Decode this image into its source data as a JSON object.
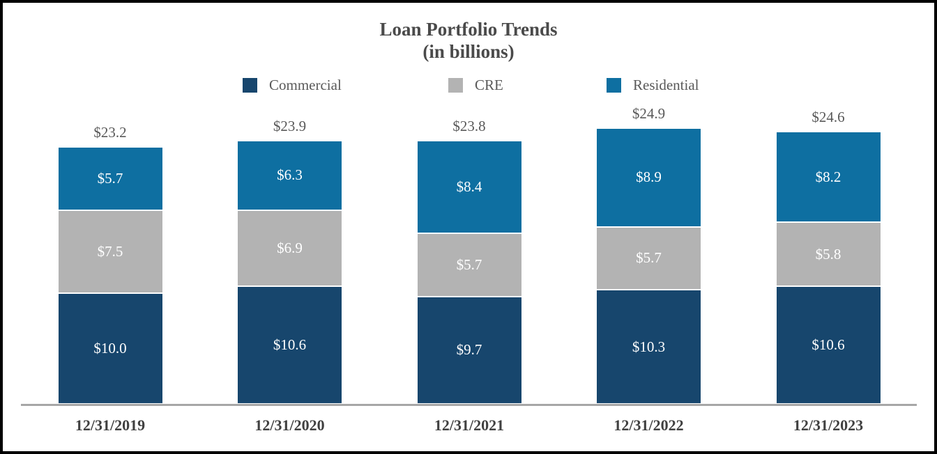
{
  "chart": {
    "title": "Loan Portfolio Trends",
    "subtitle": "(in billions)"
  },
  "chart_data": {
    "type": "bar",
    "stacked": true,
    "title": "Loan Portfolio Trends",
    "subtitle": "(in billions)",
    "categories": [
      "12/31/2019",
      "12/31/2020",
      "12/31/2021",
      "12/31/2022",
      "12/31/2023"
    ],
    "series": [
      {
        "name": "Commercial",
        "color": "#17466D",
        "values": [
          10.0,
          10.6,
          9.7,
          10.3,
          10.6
        ],
        "labels": [
          "$10.0",
          "$10.6",
          "$9.7",
          "$10.3",
          "$10.6"
        ]
      },
      {
        "name": "CRE",
        "color": "#B3B3B3",
        "values": [
          7.5,
          6.9,
          5.7,
          5.7,
          5.8
        ],
        "labels": [
          "$7.5",
          "$6.9",
          "$5.7",
          "$5.7",
          "$5.8"
        ]
      },
      {
        "name": "Residential",
        "color": "#0E6FA1",
        "values": [
          5.7,
          6.3,
          8.4,
          8.9,
          8.2
        ],
        "labels": [
          "$5.7",
          "$6.3",
          "$8.4",
          "$8.9",
          "$8.2"
        ]
      }
    ],
    "totals": {
      "values": [
        23.2,
        23.9,
        23.8,
        24.9,
        24.6
      ],
      "labels": [
        "$23.2",
        "$23.9",
        "$23.8",
        "$24.9",
        "$24.6"
      ]
    },
    "legend_position": "top",
    "grid": false,
    "value_label_color": "#FFFFFF",
    "total_label_color": "#595959",
    "axis_line_color": "#A6A6A6",
    "xlabel": "",
    "ylabel": ""
  }
}
